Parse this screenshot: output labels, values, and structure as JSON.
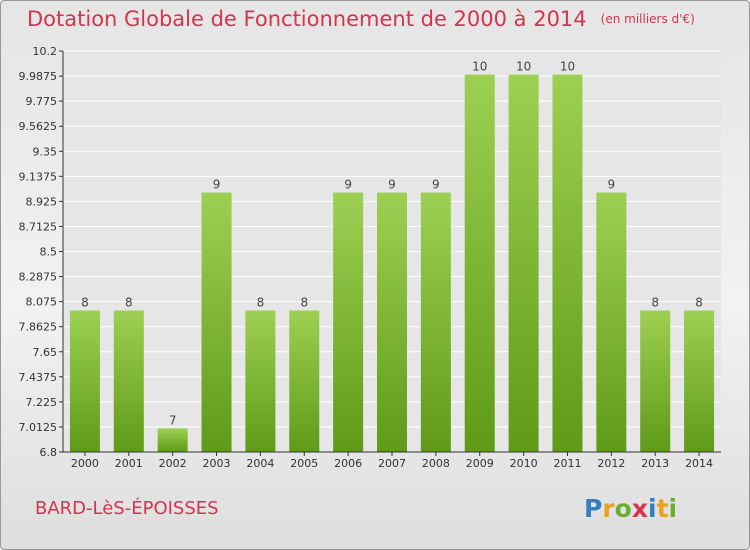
{
  "header": {
    "title": "Dotation Globale de Fonctionnement de 2000 à 2014",
    "unit": "(en milliers d'€)"
  },
  "footer": {
    "commune": "BARD-LèS-ÉPOISSES",
    "logo_text": "Proxiti"
  },
  "colors": {
    "title": "#d4344e",
    "bar_top": "#9dd052",
    "bar_bottom": "#5f9a18",
    "grid": "#ffffff"
  },
  "chart_data": {
    "type": "bar",
    "title": "Dotation Globale de Fonctionnement de 2000 à 2014",
    "xlabel": "",
    "ylabel": "",
    "categories": [
      "2000",
      "2001",
      "2002",
      "2003",
      "2004",
      "2005",
      "2006",
      "2007",
      "2008",
      "2009",
      "2010",
      "2011",
      "2012",
      "2013",
      "2014"
    ],
    "values": [
      8,
      8,
      7,
      9,
      8,
      8,
      9,
      9,
      9,
      10,
      10,
      10,
      9,
      8,
      8
    ],
    "data_labels": [
      "8",
      "8",
      "7",
      "9",
      "8",
      "8",
      "9",
      "9",
      "9",
      "10",
      "10",
      "10",
      "9",
      "8",
      "8"
    ],
    "ylim": [
      6.8,
      10.2
    ],
    "yticks": [
      6.8,
      7.0125,
      7.225,
      7.4375,
      7.65,
      7.8625,
      8.075,
      8.2875,
      8.5,
      8.7125,
      8.925,
      9.1375,
      9.35,
      9.5625,
      9.775,
      9.9875,
      10.2
    ],
    "ytick_labels": [
      "6.8",
      "7.0125",
      "7.225",
      "7.4375",
      "7.65",
      "7.8625",
      "8.075",
      "8.2875",
      "8.5",
      "8.7125",
      "8.925",
      "9.1375",
      "9.35",
      "9.5625",
      "9.775",
      "9.9875",
      "10.2"
    ],
    "grid": true,
    "legend": "none"
  }
}
